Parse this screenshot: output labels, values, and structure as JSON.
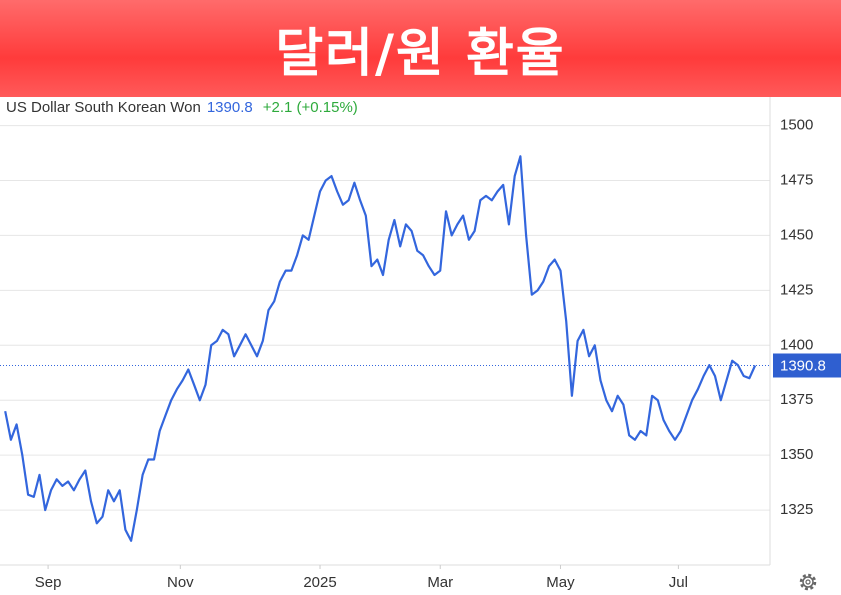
{
  "chart_data": {
    "type": "line",
    "title": "달러/원 환율",
    "series_name": "US Dollar South Korean Won",
    "last_value": 1390.8,
    "change": "+2.1 (+0.15%)",
    "color": "#3366dd",
    "values": [
      1370,
      1357,
      1364,
      1350,
      1332,
      1331,
      1341,
      1325,
      1334,
      1339,
      1336,
      1338,
      1334,
      1339,
      1343,
      1329,
      1319,
      1322,
      1334,
      1329,
      1334,
      1316,
      1311,
      1325,
      1341,
      1348,
      1348,
      1361,
      1368,
      1375,
      1380,
      1384,
      1389,
      1382,
      1375,
      1382,
      1400,
      1402,
      1407,
      1405,
      1395,
      1400,
      1405,
      1400,
      1395,
      1402,
      1416,
      1420,
      1429,
      1434,
      1434,
      1441,
      1450,
      1448,
      1459,
      1470,
      1475,
      1477,
      1470,
      1464,
      1466,
      1474,
      1466,
      1459,
      1436,
      1439,
      1432,
      1448,
      1457,
      1445,
      1455,
      1452,
      1443,
      1441,
      1436,
      1432,
      1434,
      1461,
      1450,
      1455,
      1459,
      1448,
      1452,
      1466,
      1468,
      1466,
      1470,
      1473,
      1455,
      1477,
      1486,
      1450,
      1423,
      1425,
      1429,
      1436,
      1439,
      1434,
      1411,
      1377,
      1402,
      1407,
      1395,
      1400,
      1384,
      1375,
      1370,
      1377,
      1373,
      1359,
      1357,
      1361,
      1359,
      1377,
      1375,
      1366,
      1361,
      1357,
      1361,
      1368,
      1375,
      1380,
      1386,
      1391,
      1386,
      1375,
      1384,
      1393,
      1391,
      1386,
      1385,
      1390.8
    ],
    "xlim": [
      -0.9,
      133.6
    ],
    "xticks": [
      {
        "value": 7.5,
        "label": "Sep"
      },
      {
        "value": 30.6,
        "label": "Nov"
      },
      {
        "value": 55,
        "label": "2025"
      },
      {
        "value": 76,
        "label": "Mar"
      },
      {
        "value": 97,
        "label": "May"
      },
      {
        "value": 117.6,
        "label": "Jul"
      }
    ],
    "ylim": [
      1300,
      1513
    ],
    "yticks": [
      1325,
      1350,
      1375,
      1400,
      1425,
      1450,
      1475,
      1500
    ],
    "grid": true
  }
}
